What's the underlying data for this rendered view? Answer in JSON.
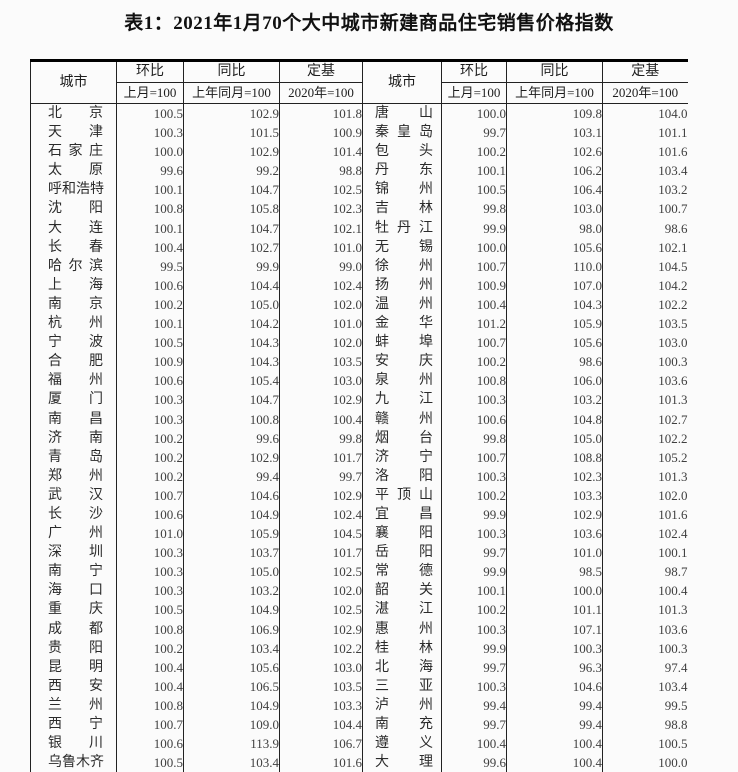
{
  "title": "表1：2021年1月70个大中城市新建商品住宅销售价格指数",
  "table": {
    "city_header": "城市",
    "col_groups": [
      {
        "label": "环比",
        "sub": "上月=100"
      },
      {
        "label": "同比",
        "sub": "上年同月=100"
      },
      {
        "label": "定基",
        "sub": "2020年=100"
      }
    ],
    "left": [
      {
        "city": "北京",
        "mom": "100.5",
        "yoy": "102.9",
        "base": "101.8"
      },
      {
        "city": "天津",
        "mom": "100.3",
        "yoy": "101.5",
        "base": "100.9"
      },
      {
        "city": "石家庄",
        "mom": "100.0",
        "yoy": "102.9",
        "base": "101.4"
      },
      {
        "city": "太原",
        "mom": "99.6",
        "yoy": "99.2",
        "base": "98.8"
      },
      {
        "city": "呼和浩特",
        "mom": "100.1",
        "yoy": "104.7",
        "base": "102.5"
      },
      {
        "city": "沈阳",
        "mom": "100.8",
        "yoy": "105.8",
        "base": "102.3"
      },
      {
        "city": "大连",
        "mom": "100.1",
        "yoy": "104.7",
        "base": "102.1"
      },
      {
        "city": "长春",
        "mom": "100.4",
        "yoy": "102.7",
        "base": "101.0"
      },
      {
        "city": "哈尔滨",
        "mom": "99.5",
        "yoy": "99.9",
        "base": "99.0"
      },
      {
        "city": "上海",
        "mom": "100.6",
        "yoy": "104.4",
        "base": "102.4"
      },
      {
        "city": "南京",
        "mom": "100.2",
        "yoy": "105.0",
        "base": "102.0"
      },
      {
        "city": "杭州",
        "mom": "100.1",
        "yoy": "104.2",
        "base": "101.0"
      },
      {
        "city": "宁波",
        "mom": "100.5",
        "yoy": "104.3",
        "base": "102.0"
      },
      {
        "city": "合肥",
        "mom": "100.9",
        "yoy": "104.3",
        "base": "103.5"
      },
      {
        "city": "福州",
        "mom": "100.6",
        "yoy": "105.4",
        "base": "103.0"
      },
      {
        "city": "厦门",
        "mom": "100.3",
        "yoy": "104.7",
        "base": "102.9"
      },
      {
        "city": "南昌",
        "mom": "100.3",
        "yoy": "100.8",
        "base": "100.4"
      },
      {
        "city": "济南",
        "mom": "100.2",
        "yoy": "99.6",
        "base": "99.8"
      },
      {
        "city": "青岛",
        "mom": "100.2",
        "yoy": "102.9",
        "base": "101.7"
      },
      {
        "city": "郑州",
        "mom": "100.2",
        "yoy": "99.4",
        "base": "99.7"
      },
      {
        "city": "武汉",
        "mom": "100.7",
        "yoy": "104.6",
        "base": "102.9"
      },
      {
        "city": "长沙",
        "mom": "100.6",
        "yoy": "104.9",
        "base": "102.4"
      },
      {
        "city": "广州",
        "mom": "101.0",
        "yoy": "105.9",
        "base": "104.5"
      },
      {
        "city": "深圳",
        "mom": "100.3",
        "yoy": "103.7",
        "base": "101.7"
      },
      {
        "city": "南宁",
        "mom": "100.3",
        "yoy": "105.0",
        "base": "102.5"
      },
      {
        "city": "海口",
        "mom": "100.3",
        "yoy": "103.2",
        "base": "102.0"
      },
      {
        "city": "重庆",
        "mom": "100.5",
        "yoy": "104.9",
        "base": "102.5"
      },
      {
        "city": "成都",
        "mom": "100.8",
        "yoy": "106.9",
        "base": "102.9"
      },
      {
        "city": "贵阳",
        "mom": "100.2",
        "yoy": "103.4",
        "base": "102.2"
      },
      {
        "city": "昆明",
        "mom": "100.4",
        "yoy": "105.6",
        "base": "103.0"
      },
      {
        "city": "西安",
        "mom": "100.4",
        "yoy": "106.5",
        "base": "103.5"
      },
      {
        "city": "兰州",
        "mom": "100.8",
        "yoy": "104.9",
        "base": "103.3"
      },
      {
        "city": "西宁",
        "mom": "100.7",
        "yoy": "109.0",
        "base": "104.4"
      },
      {
        "city": "银川",
        "mom": "100.6",
        "yoy": "113.9",
        "base": "106.7"
      },
      {
        "city": "乌鲁木齐",
        "mom": "100.5",
        "yoy": "103.4",
        "base": "101.6"
      }
    ],
    "right": [
      {
        "city": "唐山",
        "mom": "100.0",
        "yoy": "109.8",
        "base": "104.0"
      },
      {
        "city": "秦皇岛",
        "mom": "99.7",
        "yoy": "103.1",
        "base": "101.1"
      },
      {
        "city": "包头",
        "mom": "100.2",
        "yoy": "102.6",
        "base": "101.6"
      },
      {
        "city": "丹东",
        "mom": "100.1",
        "yoy": "106.2",
        "base": "103.4"
      },
      {
        "city": "锦州",
        "mom": "100.5",
        "yoy": "106.4",
        "base": "103.2"
      },
      {
        "city": "吉林",
        "mom": "99.8",
        "yoy": "103.0",
        "base": "100.7"
      },
      {
        "city": "牡丹江",
        "mom": "99.9",
        "yoy": "98.0",
        "base": "98.6"
      },
      {
        "city": "无锡",
        "mom": "100.0",
        "yoy": "105.6",
        "base": "102.1"
      },
      {
        "city": "徐州",
        "mom": "100.7",
        "yoy": "110.0",
        "base": "104.5"
      },
      {
        "city": "扬州",
        "mom": "100.9",
        "yoy": "107.0",
        "base": "104.2"
      },
      {
        "city": "温州",
        "mom": "100.4",
        "yoy": "104.3",
        "base": "102.2"
      },
      {
        "city": "金华",
        "mom": "101.2",
        "yoy": "105.9",
        "base": "103.5"
      },
      {
        "city": "蚌埠",
        "mom": "100.7",
        "yoy": "105.6",
        "base": "103.0"
      },
      {
        "city": "安庆",
        "mom": "100.2",
        "yoy": "98.6",
        "base": "100.3"
      },
      {
        "city": "泉州",
        "mom": "100.8",
        "yoy": "106.0",
        "base": "103.6"
      },
      {
        "city": "九江",
        "mom": "100.3",
        "yoy": "103.2",
        "base": "101.3"
      },
      {
        "city": "赣州",
        "mom": "100.6",
        "yoy": "104.8",
        "base": "102.7"
      },
      {
        "city": "烟台",
        "mom": "99.8",
        "yoy": "105.0",
        "base": "102.2"
      },
      {
        "city": "济宁",
        "mom": "100.7",
        "yoy": "108.8",
        "base": "105.2"
      },
      {
        "city": "洛阳",
        "mom": "100.3",
        "yoy": "102.3",
        "base": "101.3"
      },
      {
        "city": "平顶山",
        "mom": "100.2",
        "yoy": "103.3",
        "base": "102.0"
      },
      {
        "city": "宜昌",
        "mom": "99.9",
        "yoy": "102.9",
        "base": "101.6"
      },
      {
        "city": "襄阳",
        "mom": "100.3",
        "yoy": "103.6",
        "base": "102.4"
      },
      {
        "city": "岳阳",
        "mom": "99.7",
        "yoy": "101.0",
        "base": "100.1"
      },
      {
        "city": "常德",
        "mom": "99.9",
        "yoy": "98.5",
        "base": "98.7"
      },
      {
        "city": "韶关",
        "mom": "100.1",
        "yoy": "100.0",
        "base": "100.4"
      },
      {
        "city": "湛江",
        "mom": "100.2",
        "yoy": "101.1",
        "base": "101.3"
      },
      {
        "city": "惠州",
        "mom": "100.3",
        "yoy": "107.1",
        "base": "103.6"
      },
      {
        "city": "桂林",
        "mom": "99.9",
        "yoy": "100.3",
        "base": "100.3"
      },
      {
        "city": "北海",
        "mom": "99.7",
        "yoy": "96.3",
        "base": "97.4"
      },
      {
        "city": "三亚",
        "mom": "100.3",
        "yoy": "104.6",
        "base": "103.4"
      },
      {
        "city": "泸州",
        "mom": "99.4",
        "yoy": "99.4",
        "base": "99.5"
      },
      {
        "city": "南充",
        "mom": "99.7",
        "yoy": "99.4",
        "base": "98.8"
      },
      {
        "city": "遵义",
        "mom": "100.4",
        "yoy": "100.4",
        "base": "100.5"
      },
      {
        "city": "大理",
        "mom": "99.6",
        "yoy": "100.4",
        "base": "100.0"
      }
    ]
  }
}
